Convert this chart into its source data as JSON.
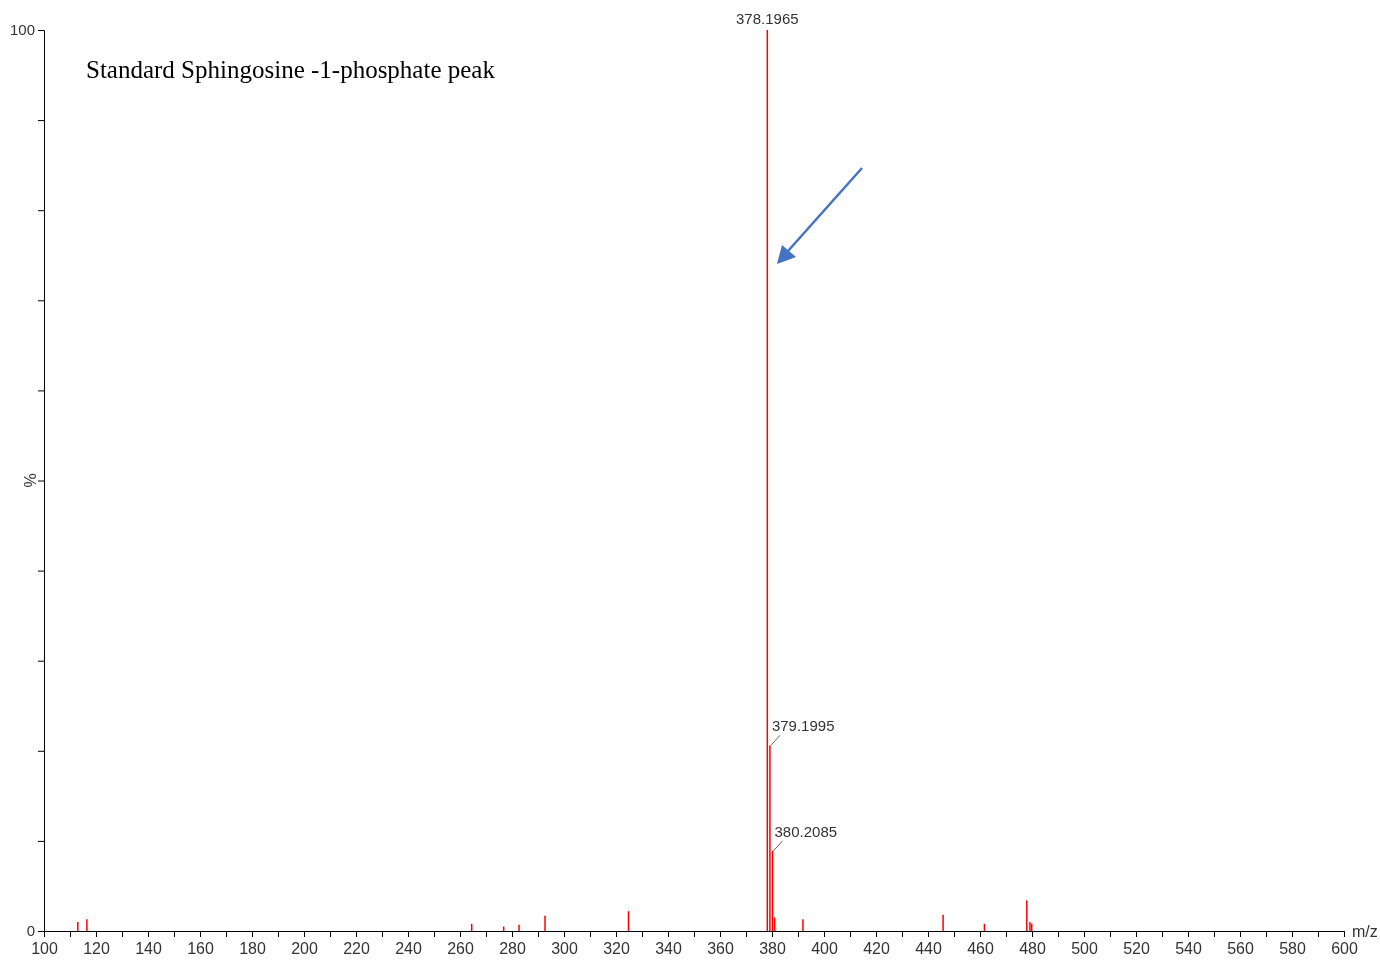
{
  "chart_data": {
    "type": "bar",
    "title": "Standard Sphingosine -1-phosphate peak",
    "xlabel": "m/z",
    "ylabel": "%",
    "x": [
      113,
      116.5,
      264.5,
      276.8,
      282.7,
      292.7,
      324.8,
      378.1965,
      379.1995,
      380.2085,
      381,
      391.9,
      445.8,
      461.7,
      478,
      479.2,
      479.9
    ],
    "values": [
      1.0,
      1.3,
      0.8,
      0.5,
      0.7,
      1.7,
      2.2,
      100,
      20.6,
      8.9,
      1.5,
      1.3,
      1.8,
      0.8,
      3.4,
      1.0,
      0.8
    ],
    "annotations": [
      {
        "text": "378.1965",
        "x": 378.1965,
        "y": 100
      },
      {
        "text": "379.1995",
        "x": 379.1995,
        "y": 20.6
      },
      {
        "text": "380.2085",
        "x": 380.2085,
        "y": 8.9
      }
    ],
    "color": "#ff0000",
    "xlim": [
      100,
      600
    ],
    "ylim": [
      0,
      100
    ],
    "xticks": [
      100,
      {
        "value": 110,
        "label": null
      },
      120,
      {
        "value": 130,
        "label": null
      },
      140,
      {
        "value": 150,
        "label": null
      },
      160,
      {
        "value": 170,
        "label": null
      },
      180,
      {
        "value": 190,
        "label": null
      },
      200,
      {
        "value": 210,
        "label": null
      },
      220,
      {
        "value": 230,
        "label": null
      },
      240,
      {
        "value": 250,
        "label": null
      },
      260,
      {
        "value": 270,
        "label": null
      },
      280,
      {
        "value": 290,
        "label": null
      },
      300,
      {
        "value": 310,
        "label": null
      },
      320,
      {
        "value": 330,
        "label": null
      },
      340,
      {
        "value": 350,
        "label": null
      },
      360,
      {
        "value": 370,
        "label": null
      },
      380,
      {
        "value": 390,
        "label": null
      },
      400,
      {
        "value": 410,
        "label": null
      },
      420,
      {
        "value": 430,
        "label": null
      },
      440,
      {
        "value": 450,
        "label": null
      },
      460,
      {
        "value": 470,
        "label": null
      },
      480,
      {
        "value": 490,
        "label": null
      },
      500,
      {
        "value": 510,
        "label": null
      },
      520,
      {
        "value": 530,
        "label": null
      },
      540,
      {
        "value": 550,
        "label": null
      },
      560,
      {
        "value": 570,
        "label": null
      },
      580,
      {
        "value": 590,
        "label": null
      },
      600
    ],
    "yticks": [
      0,
      {
        "value": 10,
        "label": null
      },
      {
        "value": 20,
        "label": null
      },
      {
        "value": 30,
        "label": null
      },
      {
        "value": 40,
        "label": null
      },
      {
        "value": 50,
        "label": null
      },
      {
        "value": 60,
        "label": null
      },
      {
        "value": 70,
        "label": null
      },
      {
        "value": 80,
        "label": null
      },
      {
        "value": 90,
        "label": null
      },
      100
    ],
    "grid": false
  }
}
